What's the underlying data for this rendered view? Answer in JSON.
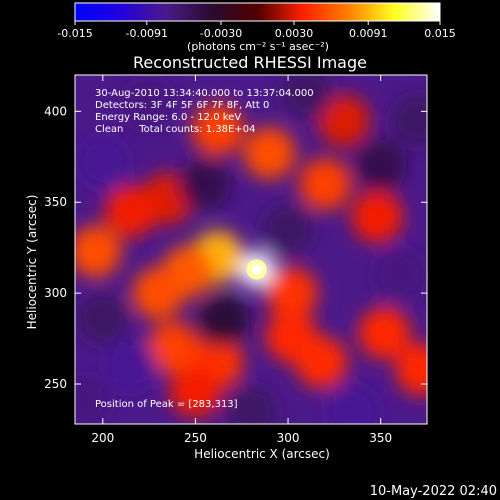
{
  "chart_data": {
    "type": "heatmap",
    "title": "Reconstructed RHESSI Image",
    "xlabel": "Heliocentric X (arcsec)",
    "ylabel": "Heliocentric Y (arcsec)",
    "xlim": [
      185,
      375
    ],
    "ylim": [
      228,
      420
    ],
    "x_ticks": [
      200,
      250,
      300,
      350
    ],
    "y_ticks": [
      250,
      300,
      350,
      400
    ],
    "info_lines": [
      "30-Aug-2010 13:34:40.000 to 13:37:04.000",
      "Detectors: 3F 4F 5F 6F 7F 8F, Att 0",
      "Energy Range: 6.0 - 12.0 keV",
      "Clean     Total counts: 1.38E+04"
    ],
    "peak_label": "Position of Peak = [283,313]",
    "peak": {
      "x": 283,
      "y": 313
    },
    "colorbar": {
      "min": -0.015,
      "max": 0.015,
      "tick_values": [
        -0.015,
        -0.0091,
        -0.003,
        0.003,
        0.0091,
        0.015
      ],
      "tick_labels": [
        "-0.015",
        "-0.0091",
        "-0.0030",
        "0.0030",
        "0.0091",
        "0.015"
      ],
      "unit_label": "(photons cm⁻² s⁻¹ asec⁻²)"
    },
    "colors": {
      "background": "#000000",
      "text": "#ffffff",
      "colormap_stops": [
        "#0000ff",
        "#2200dd",
        "#4b1a8a",
        "#2a0a2e",
        "#500000",
        "#ff2000",
        "#ff8000",
        "#ffff20",
        "#ffffff"
      ]
    },
    "features": [
      {
        "x": 283,
        "y": 313,
        "value": 0.015
      },
      {
        "x": 262,
        "y": 320,
        "value": 0.009
      },
      {
        "x": 246,
        "y": 312,
        "value": 0.006
      },
      {
        "x": 230,
        "y": 300,
        "value": 0.0055
      },
      {
        "x": 302,
        "y": 300,
        "value": 0.0045
      },
      {
        "x": 196,
        "y": 323,
        "value": 0.0055
      },
      {
        "x": 238,
        "y": 270,
        "value": 0.005
      },
      {
        "x": 262,
        "y": 262,
        "value": 0.0045
      },
      {
        "x": 302,
        "y": 276,
        "value": 0.004
      },
      {
        "x": 318,
        "y": 262,
        "value": 0.0042
      },
      {
        "x": 250,
        "y": 246,
        "value": 0.0035
      },
      {
        "x": 352,
        "y": 278,
        "value": 0.004
      },
      {
        "x": 372,
        "y": 258,
        "value": 0.004
      },
      {
        "x": 290,
        "y": 377,
        "value": 0.0055
      },
      {
        "x": 320,
        "y": 360,
        "value": 0.005
      },
      {
        "x": 262,
        "y": 390,
        "value": 0.005
      },
      {
        "x": 348,
        "y": 342,
        "value": 0.0035
      },
      {
        "x": 235,
        "y": 352,
        "value": 0.003
      },
      {
        "x": 215,
        "y": 345,
        "value": 0.0035
      },
      {
        "x": 330,
        "y": 395,
        "value": 0.003
      },
      {
        "x": 360,
        "y": 310,
        "value": -0.007
      },
      {
        "x": 300,
        "y": 335,
        "value": -0.006
      },
      {
        "x": 200,
        "y": 372,
        "value": -0.008
      },
      {
        "x": 225,
        "y": 404,
        "value": -0.007
      },
      {
        "x": 215,
        "y": 260,
        "value": -0.008
      },
      {
        "x": 335,
        "y": 235,
        "value": -0.008
      },
      {
        "x": 200,
        "y": 286,
        "value": -0.006
      },
      {
        "x": 265,
        "y": 285,
        "value": -0.004
      },
      {
        "x": 255,
        "y": 360,
        "value": -0.005
      },
      {
        "x": 370,
        "y": 395,
        "value": -0.006
      },
      {
        "x": 280,
        "y": 235,
        "value": -0.006
      },
      {
        "x": 350,
        "y": 370,
        "value": -0.005
      },
      {
        "x": 310,
        "y": 410,
        "value": -0.006
      },
      {
        "x": 190,
        "y": 240,
        "value": -0.007
      }
    ]
  },
  "footer": {
    "timestamp": "10-May-2022 02:40"
  }
}
